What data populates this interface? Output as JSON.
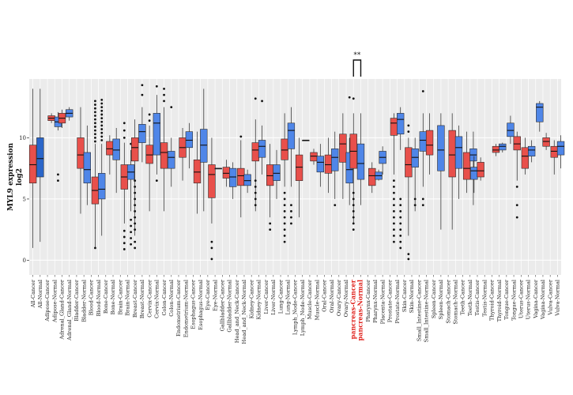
{
  "chart_data": {
    "type": "boxplot",
    "title": "",
    "xlabel": "",
    "ylabel_lines": [
      "MYL9 expression",
      "log2"
    ],
    "ylim": [
      -1.2,
      14.8
    ],
    "yticks": [
      0,
      5,
      10
    ],
    "grid": true,
    "colors": {
      "Cancer": "#e8504b",
      "Normal": "#4f86e8",
      "All": "#2b66c9",
      "panel": "#ebebeb",
      "gridline": "#ffffff",
      "highlight_label": "#e0201b"
    },
    "significance": {
      "label": "**",
      "between": [
        "pancreas-Cancer",
        "pancreas-Normal"
      ]
    },
    "highlighted_categories": [
      "pancreas-Cancer",
      "pancreas-Normal"
    ],
    "categories": [
      "All-Cancer",
      "All-Normal",
      "Adipose-Cancer",
      "Adipose-Normal",
      "Adrenal_Gland-Cancer",
      "Adrenal_Gland-Normal",
      "Bladder-Cancer",
      "Bladder-Normal",
      "Blood-Cancer",
      "Blood-Normal",
      "Bone-Cancer",
      "Bone-Normal",
      "Brain-Cancer",
      "Brain-Normal",
      "Breast-Cancer",
      "Breast-Normal",
      "Cervix-Cancer",
      "Cervix-Normal",
      "Colon-Cancer",
      "Colon-Normal",
      "Endometrium-Cancer",
      "Endometrium-Normal",
      "Esophagus-Cancer",
      "Esophagus-Normal",
      "Eye-Cancer",
      "Eye-Normal",
      "Gallbladder-Cancer",
      "Gallbladder-Normal",
      "Head_and_Neck-Cancer",
      "Head_and_Neck-Normal",
      "Kidney-Cancer",
      "Kidney-Normal",
      "Liver-Cancer",
      "Liver-Normal",
      "Lung-Cancer",
      "Lung-Normal",
      "Lymph_Node-Cancer",
      "Lymph_Node-Normal",
      "Muscle-Cancer",
      "Muscle-Normal",
      "Oral-Cancer",
      "Oral-Normal",
      "Ovary-Cancer",
      "Ovary-Normal",
      "pancreas-Cancer",
      "pancreas-Normal",
      "Pharynx-Cancer",
      "Pharynx-Normal",
      "Placenta-Normal",
      "Prostate-Cancer",
      "Prostate-Normal",
      "Skin-Cancer",
      "Skin-Normal",
      "Small_Intestine-Cancer",
      "Small_Intestine-Normal",
      "Spleen-Cancer",
      "Spleen-Normal",
      "Stomach-Cancer",
      "Stomach-Normal",
      "Teeth-Cancer",
      "Teeth-Normal",
      "Testis-Cancer",
      "Testis-Normal",
      "Thyroid-Cancer",
      "Thyroid-Normal",
      "Tongue-Cancer",
      "Tongue-Normal",
      "Uterus-Cancer",
      "Uterus-Normal",
      "Vagina-Cancer",
      "Vagina-Normal",
      "Vulva-Cancer",
      "Vulva-Normal"
    ],
    "boxes": [
      {
        "group": "All-Cancer",
        "kind": "Cancer",
        "wlo": 1.0,
        "q1": 6.3,
        "med": 7.8,
        "q3": 9.4,
        "whi": 14.0,
        "outliers": []
      },
      {
        "group": "All-Normal",
        "kind": "All",
        "wlo": 1.5,
        "q1": 6.8,
        "med": 8.3,
        "q3": 10.0,
        "whi": 14.0,
        "outliers": []
      },
      {
        "group": "Adipose-Normal",
        "kind": "Cancer",
        "wlo": 11.2,
        "q1": 11.4,
        "med": 11.6,
        "q3": 11.8,
        "whi": 12.0,
        "outliers": []
      },
      {
        "group": "Adipose-Normal",
        "kind": "Normal",
        "wlo": 10.6,
        "q1": 10.9,
        "med": 11.3,
        "q3": 11.7,
        "whi": 12.1,
        "outliers": [
          6.5,
          7.0
        ]
      },
      {
        "group": "Adrenal_Gland-Cancer",
        "kind": "Cancer",
        "wlo": 10.8,
        "q1": 11.2,
        "med": 11.6,
        "q3": 12.0,
        "whi": 12.3,
        "outliers": []
      },
      {
        "group": "Adrenal_Gland-Normal",
        "kind": "Normal",
        "wlo": 11.4,
        "q1": 11.7,
        "med": 12.0,
        "q3": 12.3,
        "whi": 12.5,
        "outliers": []
      },
      {
        "group": "Bladder-Normal",
        "kind": "Cancer",
        "wlo": 3.8,
        "q1": 7.5,
        "med": 8.6,
        "q3": 10.0,
        "whi": 12.5,
        "outliers": []
      },
      {
        "group": "Bladder-Normal",
        "kind": "Normal",
        "wlo": 4.5,
        "q1": 6.3,
        "med": 7.4,
        "q3": 8.8,
        "whi": 11.0,
        "outliers": []
      },
      {
        "group": "Blood-Normal",
        "kind": "Cancer",
        "wlo": 1.0,
        "q1": 4.6,
        "med": 5.7,
        "q3": 6.8,
        "whi": 9.5,
        "outliers": [
          1.0,
          9.7,
          10.0,
          10.3,
          10.6,
          10.9,
          11.2,
          11.5,
          11.8,
          12.1,
          12.4,
          12.7,
          13.0
        ]
      },
      {
        "group": "Blood-Normal",
        "kind": "Normal",
        "wlo": 2.0,
        "q1": 5.0,
        "med": 5.8,
        "q3": 7.1,
        "whi": 9.5,
        "outliers": [
          9.8,
          10.1,
          10.4,
          10.7,
          11.0,
          11.3,
          11.6,
          11.9,
          12.2,
          12.5,
          12.8,
          13.1
        ]
      },
      {
        "group": "Bone-Normal",
        "kind": "Cancer",
        "wlo": 7.0,
        "q1": 8.6,
        "med": 9.1,
        "q3": 9.7,
        "whi": 10.2,
        "outliers": []
      },
      {
        "group": "Bone-Normal",
        "kind": "Normal",
        "wlo": 5.5,
        "q1": 8.2,
        "med": 9.0,
        "q3": 9.9,
        "whi": 10.8,
        "outliers": []
      },
      {
        "group": "Brain-Normal",
        "kind": "Cancer",
        "wlo": 3.0,
        "q1": 5.8,
        "med": 6.8,
        "q3": 7.8,
        "whi": 9.6,
        "outliers": [
          0.9,
          1.4,
          1.9,
          2.4,
          10.0,
          10.6,
          11.2
        ]
      },
      {
        "group": "Brain-Normal",
        "kind": "Normal",
        "wlo": 4.0,
        "q1": 6.6,
        "med": 7.2,
        "q3": 7.8,
        "whi": 9.0,
        "outliers": [
          1.3,
          1.8,
          2.3,
          2.8,
          3.3,
          9.5
        ]
      },
      {
        "group": "Breast-Cancer",
        "kind": "Cancer",
        "wlo": 2.0,
        "q1": 8.1,
        "med": 9.2,
        "q3": 10.0,
        "whi": 11.5,
        "outliers": [
          1.0,
          1.5,
          2.5,
          3.0,
          3.5,
          4.0,
          4.5,
          5.0,
          5.5,
          6.0,
          6.5
        ]
      },
      {
        "group": "Breast-Normal",
        "kind": "Normal",
        "wlo": 8.0,
        "q1": 9.6,
        "med": 10.5,
        "q3": 11.1,
        "whi": 12.5,
        "outliers": [
          13.5,
          14.3
        ]
      },
      {
        "group": "Cervix-Cancer",
        "kind": "Cancer",
        "wlo": 4.0,
        "q1": 7.9,
        "med": 8.6,
        "q3": 9.4,
        "whi": 11.0,
        "outliers": [
          11.4,
          11.9
        ]
      },
      {
        "group": "Cervix-Normal",
        "kind": "Normal",
        "wlo": 7.0,
        "q1": 8.6,
        "med": 11.2,
        "q3": 12.0,
        "whi": 13.5,
        "outliers": [
          6.5,
          14.2
        ]
      },
      {
        "group": "Colon-Cancer",
        "kind": "Cancer",
        "wlo": 4.0,
        "q1": 7.5,
        "med": 8.8,
        "q3": 9.6,
        "whi": 12.5,
        "outliers": [
          13.0,
          13.5,
          14.0
        ]
      },
      {
        "group": "Colon-Normal",
        "kind": "Normal",
        "wlo": 6.0,
        "q1": 7.5,
        "med": 8.4,
        "q3": 8.9,
        "whi": 10.0,
        "outliers": [
          12.5
        ]
      },
      {
        "group": "Endometrium-Normal",
        "kind": "Cancer",
        "wlo": 6.5,
        "q1": 8.4,
        "med": 9.2,
        "q3": 10.0,
        "whi": 10.8,
        "outliers": []
      },
      {
        "group": "Endometrium-Normal",
        "kind": "Normal",
        "wlo": 7.5,
        "q1": 9.2,
        "med": 9.8,
        "q3": 10.5,
        "whi": 11.2,
        "outliers": []
      },
      {
        "group": "Esophagus-Normal",
        "kind": "Cancer",
        "wlo": 3.8,
        "q1": 6.3,
        "med": 7.2,
        "q3": 8.2,
        "whi": 10.5,
        "outliers": []
      },
      {
        "group": "Esophagus-Normal",
        "kind": "Normal",
        "wlo": 4.0,
        "q1": 8.0,
        "med": 9.4,
        "q3": 10.7,
        "whi": 14.0,
        "outliers": []
      },
      {
        "group": "Eye-Normal",
        "kind": "Cancer",
        "wlo": 3.0,
        "q1": 5.1,
        "med": 7.0,
        "q3": 7.8,
        "whi": 10.0,
        "outliers": [
          0.1,
          1.0,
          1.5
        ]
      },
      {
        "group": "Eye-Normal",
        "kind": "Normal",
        "wlo": 7.5,
        "q1": 7.5,
        "med": 7.5,
        "q3": 7.5,
        "whi": 7.5,
        "outliers": []
      },
      {
        "group": "Gallbladder-Normal",
        "kind": "Cancer",
        "wlo": 6.0,
        "q1": 6.7,
        "med": 7.1,
        "q3": 7.6,
        "whi": 8.2,
        "outliers": []
      },
      {
        "group": "Gallbladder-Normal",
        "kind": "Normal",
        "wlo": 5.0,
        "q1": 6.0,
        "med": 6.8,
        "q3": 7.5,
        "whi": 8.0,
        "outliers": []
      },
      {
        "group": "Head_and_Neck-Normal",
        "kind": "Cancer",
        "wlo": 3.5,
        "q1": 6.1,
        "med": 6.9,
        "q3": 7.5,
        "whi": 9.8,
        "outliers": [
          10.1
        ]
      },
      {
        "group": "Head_and_Neck-Normal",
        "kind": "Normal",
        "wlo": 5.5,
        "q1": 6.1,
        "med": 6.5,
        "q3": 7.0,
        "whi": 7.4,
        "outliers": []
      },
      {
        "group": "Kidney-Normal",
        "kind": "Cancer",
        "wlo": 4.0,
        "q1": 8.1,
        "med": 9.0,
        "q3": 9.6,
        "whi": 11.5,
        "outliers": [
          4.5,
          5.0,
          5.5,
          6.0,
          6.5,
          13.2
        ]
      },
      {
        "group": "Kidney-Normal",
        "kind": "Normal",
        "wlo": 7.0,
        "q1": 8.4,
        "med": 9.3,
        "q3": 9.8,
        "whi": 11.0,
        "outliers": [
          13.0
        ]
      },
      {
        "group": "Liver-Normal",
        "kind": "Cancer",
        "wlo": 3.5,
        "q1": 6.1,
        "med": 6.9,
        "q3": 7.8,
        "whi": 9.5,
        "outliers": [
          2.5,
          3.0
        ]
      },
      {
        "group": "Liver-Normal",
        "kind": "Normal",
        "wlo": 5.0,
        "q1": 6.5,
        "med": 7.1,
        "q3": 7.8,
        "whi": 9.0,
        "outliers": []
      },
      {
        "group": "Lung-Normal",
        "kind": "Cancer",
        "wlo": 6.0,
        "q1": 8.2,
        "med": 9.0,
        "q3": 9.9,
        "whi": 12.0,
        "outliers": [
          1.5,
          2.0,
          2.5,
          3.0,
          3.5,
          4.0,
          4.5,
          5.0,
          5.5
        ]
      },
      {
        "group": "Lung-Normal",
        "kind": "Normal",
        "wlo": 6.0,
        "q1": 9.1,
        "med": 10.6,
        "q3": 11.2,
        "whi": 12.5,
        "outliers": [
          3.0,
          3.5,
          4.0,
          4.5
        ]
      },
      {
        "group": "Lymph_Node-Normal",
        "kind": "Cancer",
        "wlo": 3.5,
        "q1": 6.5,
        "med": 7.6,
        "q3": 8.6,
        "whi": 10.0,
        "outliers": []
      },
      {
        "group": "Lymph_Node-Normal",
        "kind": "Normal",
        "wlo": 9.8,
        "q1": 9.8,
        "med": 9.8,
        "q3": 9.8,
        "whi": 9.8,
        "outliers": []
      },
      {
        "group": "Muscle-Normal",
        "kind": "Cancer",
        "wlo": 7.8,
        "q1": 8.1,
        "med": 8.5,
        "q3": 8.8,
        "whi": 9.1,
        "outliers": []
      },
      {
        "group": "Muscle-Normal",
        "kind": "Normal",
        "wlo": 6.0,
        "q1": 7.2,
        "med": 8.0,
        "q3": 8.5,
        "whi": 9.5,
        "outliers": []
      },
      {
        "group": "Oral-Normal",
        "kind": "Cancer",
        "wlo": 5.5,
        "q1": 7.1,
        "med": 7.8,
        "q3": 8.6,
        "whi": 10.0,
        "outliers": []
      },
      {
        "group": "Oral-Normal",
        "kind": "Normal",
        "wlo": 5.0,
        "q1": 7.3,
        "med": 8.4,
        "q3": 9.1,
        "whi": 10.5,
        "outliers": [
          4.5
        ]
      },
      {
        "group": "Ovary-Normal",
        "kind": "Cancer",
        "wlo": 5.0,
        "q1": 8.0,
        "med": 9.5,
        "q3": 10.3,
        "whi": 12.0,
        "outliers": []
      },
      {
        "group": "Ovary-Normal",
        "kind": "Normal",
        "wlo": 4.5,
        "q1": 6.3,
        "med": 7.4,
        "q3": 8.8,
        "whi": 10.0,
        "outliers": [
          13.3
        ]
      },
      {
        "group": "pancreas-Cancer",
        "kind": "Cancer",
        "wlo": 3.0,
        "q1": 7.5,
        "med": 8.9,
        "q3": 10.3,
        "whi": 12.0,
        "outliers": [
          2.5,
          3.0,
          3.5,
          4.0,
          4.5,
          5.0,
          5.5,
          13.2
        ]
      },
      {
        "group": "pancreas-Normal",
        "kind": "Normal",
        "wlo": 4.5,
        "q1": 6.6,
        "med": 7.9,
        "q3": 9.5,
        "whi": 12.0,
        "outliers": []
      },
      {
        "group": "Pharynx-Normal",
        "kind": "Cancer",
        "wlo": 5.5,
        "q1": 6.1,
        "med": 6.9,
        "q3": 7.5,
        "whi": 8.0,
        "outliers": []
      },
      {
        "group": "Pharynx-Normal",
        "kind": "Normal",
        "wlo": 6.5,
        "q1": 6.6,
        "med": 6.9,
        "q3": 7.2,
        "whi": 7.4,
        "outliers": []
      },
      {
        "group": "Placenta-Normal",
        "kind": "Normal",
        "wlo": 7.0,
        "q1": 7.9,
        "med": 8.4,
        "q3": 8.9,
        "whi": 9.3,
        "outliers": []
      },
      {
        "group": "Prostate-Normal",
        "kind": "Cancer",
        "wlo": 7.0,
        "q1": 10.2,
        "med": 11.2,
        "q3": 11.6,
        "whi": 12.0,
        "outliers": [
          1.5,
          2.0,
          2.5,
          3.0,
          3.5,
          4.0,
          4.5,
          5.0,
          5.5,
          6.0,
          6.5
        ]
      },
      {
        "group": "Prostate-Normal",
        "kind": "Normal",
        "wlo": 9.0,
        "q1": 10.3,
        "med": 11.5,
        "q3": 12.0,
        "whi": 12.5,
        "outliers": [
          1.0,
          1.5,
          2.0,
          2.5,
          3.0,
          3.5,
          4.0,
          4.5,
          5.0
        ]
      },
      {
        "group": "Skin-Normal",
        "kind": "Cancer",
        "wlo": 2.0,
        "q1": 6.8,
        "med": 7.8,
        "q3": 9.2,
        "whi": 10.0,
        "outliers": [
          0.1,
          0.5,
          10.5,
          11.0
        ]
      },
      {
        "group": "Skin-Normal",
        "kind": "Normal",
        "wlo": 4.0,
        "q1": 7.6,
        "med": 8.4,
        "q3": 9.1,
        "whi": 10.0,
        "outliers": [
          4.5,
          5.0
        ]
      },
      {
        "group": "Small_Intestine-Normal",
        "kind": "Normal",
        "wlo": 6.0,
        "q1": 8.9,
        "med": 9.8,
        "q3": 10.5,
        "whi": 12.0,
        "outliers": [
          4.5,
          5.0,
          13.8
        ]
      },
      {
        "group": "Small_Intestine-Normal",
        "kind": "Cancer",
        "wlo": 7.0,
        "q1": 8.6,
        "med": 9.4,
        "q3": 10.6,
        "whi": 12.0,
        "outliers": []
      },
      {
        "group": "Spleen-Normal",
        "kind": "Normal",
        "wlo": 2.5,
        "q1": 7.3,
        "med": 9.0,
        "q3": 11.0,
        "whi": 12.0,
        "outliers": []
      },
      {
        "group": "Stomach-Normal",
        "kind": "Cancer",
        "wlo": 2.5,
        "q1": 6.8,
        "med": 8.6,
        "q3": 10.6,
        "whi": 12.0,
        "outliers": []
      },
      {
        "group": "Stomach-Normal",
        "kind": "Normal",
        "wlo": 5.0,
        "q1": 7.5,
        "med": 9.2,
        "q3": 10.1,
        "whi": 11.0,
        "outliers": []
      },
      {
        "group": "Teeth-Normal",
        "kind": "Cancer",
        "wlo": 5.5,
        "q1": 6.6,
        "med": 7.5,
        "q3": 8.8,
        "whi": 10.5,
        "outliers": []
      },
      {
        "group": "Teeth-Normal",
        "kind": "Normal",
        "wlo": 4.5,
        "q1": 8.1,
        "med": 8.6,
        "q3": 9.1,
        "whi": 10.5,
        "outliers": []
      },
      {
        "group": "Testis-Cancer",
        "kind": "Normal",
        "wlo": 5.5,
        "q1": 6.6,
        "med": 7.3,
        "q3": 7.6,
        "whi": 8.5,
        "outliers": []
      },
      {
        "group": "Testis-Cancer",
        "kind": "Cancer",
        "wlo": 6.5,
        "q1": 6.8,
        "med": 7.3,
        "q3": 8.0,
        "whi": 8.4,
        "outliers": []
      },
      {
        "group": "Thyroid-Normal",
        "kind": "Cancer",
        "wlo": 8.5,
        "q1": 8.8,
        "med": 9.0,
        "q3": 9.3,
        "whi": 9.5,
        "outliers": []
      },
      {
        "group": "Thyroid-Normal",
        "kind": "Normal",
        "wlo": 8.8,
        "q1": 9.0,
        "med": 9.3,
        "q3": 9.5,
        "whi": 9.6,
        "outliers": []
      },
      {
        "group": "Tongue-Normal",
        "kind": "Normal",
        "wlo": 9.5,
        "q1": 10.1,
        "med": 10.6,
        "q3": 11.2,
        "whi": 11.8,
        "outliers": []
      },
      {
        "group": "Tongue-Normal",
        "kind": "Cancer",
        "wlo": 6.5,
        "q1": 9.0,
        "med": 9.5,
        "q3": 10.1,
        "whi": 10.5,
        "outliers": [
          3.5,
          4.5,
          6.0
        ]
      },
      {
        "group": "Uterus-Normal",
        "kind": "Cancer",
        "wlo": 7.0,
        "q1": 7.5,
        "med": 8.5,
        "q3": 9.2,
        "whi": 10.0,
        "outliers": []
      },
      {
        "group": "Uterus-Normal",
        "kind": "Normal",
        "wlo": 8.0,
        "q1": 8.5,
        "med": 9.0,
        "q3": 9.3,
        "whi": 9.8,
        "outliers": []
      },
      {
        "group": "Vagina-Normal",
        "kind": "Normal",
        "wlo": 10.5,
        "q1": 11.3,
        "med": 12.5,
        "q3": 12.8,
        "whi": 13.0,
        "outliers": []
      },
      {
        "group": "Vagina-Normal",
        "kind": "Cancer",
        "wlo": 9.0,
        "q1": 9.3,
        "med": 9.7,
        "q3": 10.0,
        "whi": 10.4,
        "outliers": []
      },
      {
        "group": "Vulva-Normal",
        "kind": "Cancer",
        "wlo": 7.0,
        "q1": 8.4,
        "med": 8.9,
        "q3": 9.3,
        "whi": 9.8,
        "outliers": []
      },
      {
        "group": "Vulva-Normal",
        "kind": "Normal",
        "wlo": 7.5,
        "q1": 8.6,
        "med": 9.3,
        "q3": 9.7,
        "whi": 10.2,
        "outliers": []
      }
    ]
  }
}
